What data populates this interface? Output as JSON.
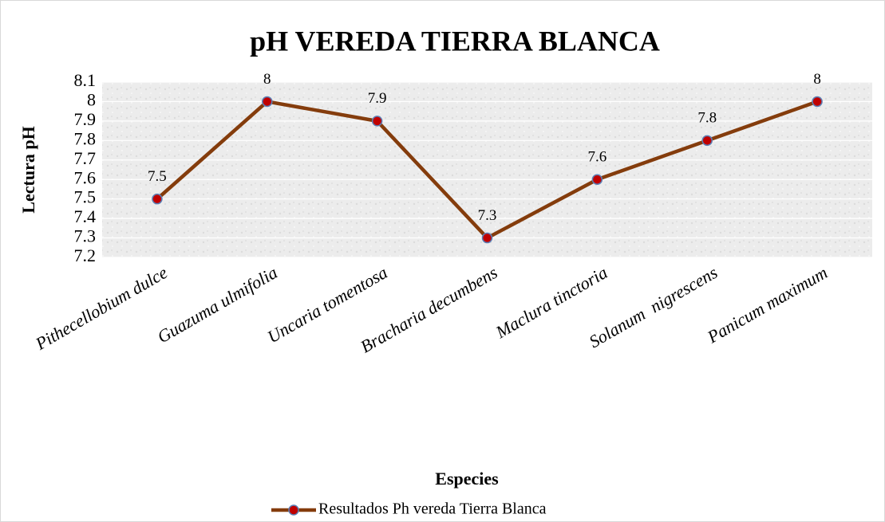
{
  "chart_data": {
    "type": "line",
    "title": "pH VEREDA TIERRA BLANCA",
    "x_label": "Especies",
    "y_label": "Lectura pH",
    "categories": [
      "Pithecellobium dulce",
      "Guazuma ulmifolia",
      "Uncaria tomentosa",
      "Bracharia decumbens",
      "Maclura tinctoria",
      "Solanum  nigrescens",
      "Panicum maximum"
    ],
    "series": [
      {
        "name": "Resultados Ph vereda Tierra Blanca",
        "color": "#843c0c",
        "marker_color": "#c00000",
        "values": [
          7.5,
          8,
          7.9,
          7.3,
          7.6,
          7.8,
          8
        ]
      }
    ],
    "ylim": [
      7.2,
      8.1
    ],
    "yticks": [
      7.2,
      7.3,
      7.4,
      7.5,
      7.6,
      7.7,
      7.8,
      7.9,
      8,
      8.1
    ],
    "grid": true,
    "legend": "bottom",
    "data_labels": true
  }
}
